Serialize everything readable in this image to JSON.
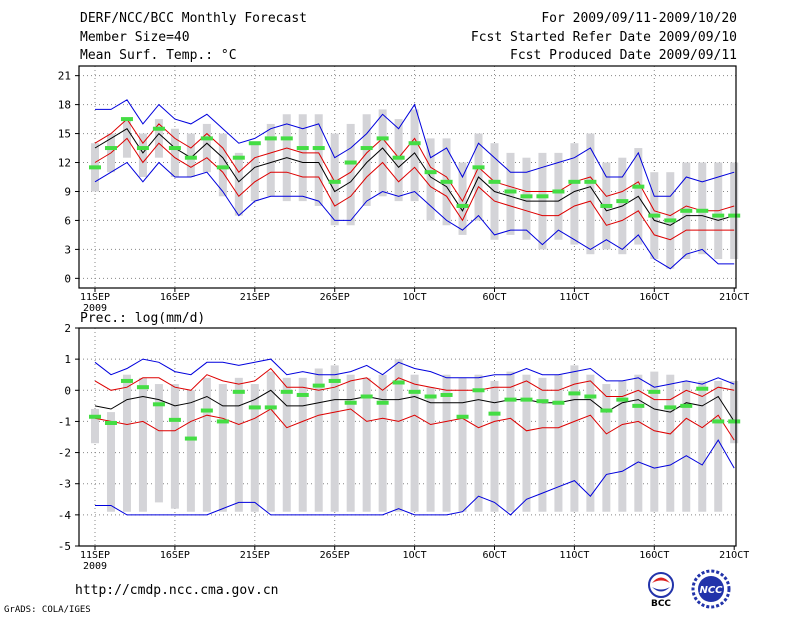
{
  "header": {
    "title": "DERF/NCC/BCC Monthly Forecast",
    "member_size": "Member Size=40",
    "variable": "Mean Surf. Temp.: °C",
    "period": "For 2009/09/11-2009/10/20",
    "started": "Fcst Started Refer Date 2009/09/10",
    "produced": "Fcst Produced Date 2009/09/11"
  },
  "footer": {
    "url": "http://cmdp.ncc.cma.gov.cn",
    "grads": "GrADS: COLA/IGES",
    "logo1_text": "BCC",
    "logo2_text": "NCC"
  },
  "colors": {
    "max_min": "#0000dd",
    "band": "#dd0000",
    "mean": "#000000",
    "obs": "#44dd44",
    "box": "#d4d4d8",
    "grid": "#888888"
  },
  "chart_data": [
    {
      "type": "line",
      "title": "Mean Surf. Temp.: °C",
      "x_tick_labels": [
        "11SEP",
        "16SEP",
        "21SEP",
        "26SEP",
        "1OCT",
        "6OCT",
        "11OCT",
        "16OCT",
        "21OCT"
      ],
      "x_year_label": "2009",
      "ylim": [
        -1,
        22
      ],
      "yticks": [
        0,
        3,
        6,
        9,
        12,
        15,
        18,
        21
      ],
      "days": 40,
      "series": [
        {
          "name": "max",
          "values": [
            17.5,
            17.5,
            18.5,
            16.0,
            18.0,
            16.5,
            16.0,
            17.0,
            15.5,
            14.0,
            14.5,
            15.5,
            16.0,
            15.5,
            16.0,
            12.5,
            13.5,
            15.0,
            17.0,
            15.5,
            18.0,
            12.5,
            13.5,
            10.5,
            14.0,
            12.5,
            11.0,
            11.0,
            11.5,
            12.0,
            12.5,
            13.5,
            10.5,
            10.5,
            13.0,
            8.5,
            8.5,
            10.5,
            10.0,
            10.5,
            11.0
          ]
        },
        {
          "name": "upper",
          "values": [
            14.0,
            15.0,
            16.5,
            14.0,
            16.0,
            14.5,
            13.5,
            15.0,
            13.5,
            11.0,
            12.5,
            13.0,
            13.5,
            13.0,
            13.0,
            10.0,
            11.0,
            13.0,
            14.5,
            12.5,
            14.5,
            11.5,
            10.5,
            8.0,
            11.5,
            10.0,
            9.5,
            9.0,
            9.0,
            9.0,
            10.0,
            10.5,
            8.5,
            9.0,
            10.0,
            7.0,
            6.5,
            7.5,
            7.0,
            7.0,
            7.5
          ]
        },
        {
          "name": "mean",
          "values": [
            13.5,
            14.5,
            15.5,
            13.0,
            15.0,
            13.5,
            12.5,
            14.0,
            12.5,
            10.0,
            11.5,
            12.0,
            12.5,
            12.0,
            12.0,
            9.0,
            10.0,
            12.0,
            13.5,
            11.5,
            13.0,
            10.5,
            9.5,
            7.0,
            10.5,
            9.0,
            8.5,
            8.0,
            8.0,
            8.0,
            9.0,
            9.5,
            7.0,
            7.5,
            8.5,
            6.0,
            5.5,
            6.5,
            6.5,
            6.0,
            6.5
          ]
        },
        {
          "name": "lower",
          "values": [
            12.0,
            13.0,
            14.5,
            12.0,
            14.0,
            12.5,
            11.5,
            12.5,
            11.0,
            8.5,
            10.0,
            11.0,
            11.0,
            10.5,
            10.5,
            7.5,
            8.5,
            10.5,
            12.0,
            10.0,
            11.5,
            9.5,
            8.5,
            6.0,
            9.5,
            8.0,
            7.5,
            7.0,
            6.5,
            6.5,
            7.5,
            8.0,
            5.5,
            6.0,
            7.0,
            4.5,
            4.0,
            5.0,
            5.0,
            5.0,
            5.0
          ]
        },
        {
          "name": "min",
          "values": [
            10.0,
            11.0,
            12.0,
            10.0,
            12.0,
            10.5,
            10.5,
            11.0,
            9.0,
            6.5,
            8.0,
            8.5,
            8.5,
            8.5,
            8.0,
            6.0,
            6.0,
            8.0,
            9.0,
            8.5,
            9.0,
            7.5,
            6.0,
            5.0,
            6.5,
            4.5,
            5.0,
            5.0,
            3.5,
            5.0,
            4.0,
            3.0,
            4.0,
            3.0,
            4.5,
            2.0,
            1.0,
            2.5,
            3.0,
            1.5,
            1.5
          ]
        },
        {
          "name": "obs",
          "values": [
            11.5,
            13.5,
            16.5,
            13.5,
            15.5,
            13.5,
            12.5,
            14.5,
            11.5,
            12.5,
            14.0,
            14.5,
            14.5,
            13.5,
            13.5,
            10.0,
            12.0,
            13.5,
            14.5,
            12.5,
            14.0,
            11.0,
            10.0,
            7.5,
            11.5,
            10.0,
            9.0,
            8.5,
            8.5,
            9.0,
            10.0,
            10.0,
            7.5,
            8.0,
            9.5,
            6.5,
            6.0,
            7.0,
            7.0,
            6.5,
            6.5
          ]
        },
        {
          "name": "spread_hi",
          "values": [
            14.0,
            15.0,
            16.5,
            15.0,
            16.5,
            15.5,
            15.0,
            16.0,
            15.0,
            13.0,
            14.0,
            16.0,
            17.0,
            17.0,
            17.0,
            15.0,
            16.0,
            17.0,
            17.5,
            16.5,
            17.5,
            14.5,
            14.5,
            12.0,
            15.0,
            14.0,
            13.0,
            12.5,
            13.0,
            13.0,
            14.0,
            15.0,
            12.0,
            12.5,
            13.5,
            11.0,
            11.0,
            12.0,
            12.0,
            12.0,
            12.0
          ]
        },
        {
          "name": "spread_lo",
          "values": [
            9.0,
            11.0,
            12.5,
            10.5,
            12.5,
            10.5,
            10.5,
            11.0,
            8.5,
            6.5,
            8.0,
            8.5,
            8.0,
            8.0,
            7.5,
            5.5,
            5.5,
            7.5,
            8.5,
            8.0,
            8.0,
            6.0,
            5.5,
            4.5,
            6.0,
            4.0,
            4.5,
            4.0,
            3.0,
            4.0,
            3.5,
            2.5,
            3.0,
            2.5,
            3.5,
            2.0,
            1.0,
            2.0,
            2.5,
            2.0,
            2.0
          ]
        }
      ]
    },
    {
      "type": "line",
      "title": "Prec.: log(mm/d)",
      "x_tick_labels": [
        "11SEP",
        "16SEP",
        "21SEP",
        "26SEP",
        "1OCT",
        "6OCT",
        "11OCT",
        "16OCT",
        "21OCT"
      ],
      "x_year_label": "2009",
      "ylim": [
        -5,
        2
      ],
      "yticks": [
        -5,
        -4,
        -3,
        -2,
        -1,
        0,
        1,
        2
      ],
      "days": 40,
      "series": [
        {
          "name": "max",
          "values": [
            0.9,
            0.5,
            0.7,
            1.0,
            0.9,
            0.6,
            0.5,
            0.9,
            0.9,
            0.8,
            0.9,
            1.0,
            0.5,
            0.6,
            0.5,
            0.5,
            0.6,
            0.8,
            0.5,
            0.9,
            0.7,
            0.6,
            0.4,
            0.4,
            0.4,
            0.5,
            0.5,
            0.7,
            0.5,
            0.5,
            0.6,
            0.7,
            0.3,
            0.3,
            0.4,
            0.1,
            0.2,
            0.3,
            0.2,
            0.4,
            0.2
          ]
        },
        {
          "name": "upper",
          "values": [
            0.3,
            0.0,
            0.1,
            0.4,
            0.4,
            0.1,
            0.0,
            0.5,
            0.3,
            0.2,
            0.3,
            0.7,
            0.1,
            0.1,
            0.0,
            0.1,
            0.3,
            0.4,
            0.0,
            0.4,
            0.2,
            0.1,
            0.0,
            0.0,
            0.0,
            0.1,
            0.1,
            0.3,
            0.0,
            0.0,
            0.2,
            0.3,
            -0.2,
            -0.2,
            0.0,
            -0.3,
            -0.3,
            0.0,
            -0.2,
            0.1,
            0.0
          ]
        },
        {
          "name": "mean",
          "values": [
            -0.5,
            -0.6,
            -0.3,
            -0.2,
            -0.3,
            -0.5,
            -0.4,
            -0.2,
            -0.5,
            -0.5,
            -0.3,
            0.0,
            -0.5,
            -0.5,
            -0.4,
            -0.3,
            -0.3,
            -0.2,
            -0.3,
            -0.3,
            -0.2,
            -0.4,
            -0.4,
            -0.4,
            -0.3,
            -0.4,
            -0.3,
            -0.3,
            -0.4,
            -0.4,
            -0.3,
            -0.3,
            -0.7,
            -0.4,
            -0.3,
            -0.6,
            -0.7,
            -0.4,
            -0.5,
            -0.2,
            -1.0
          ]
        },
        {
          "name": "lower",
          "values": [
            -0.9,
            -1.0,
            -1.1,
            -1.0,
            -1.3,
            -1.3,
            -1.0,
            -0.8,
            -0.9,
            -1.1,
            -0.9,
            -0.6,
            -1.2,
            -1.0,
            -0.8,
            -0.7,
            -0.6,
            -1.0,
            -0.9,
            -1.0,
            -0.8,
            -1.1,
            -1.0,
            -0.9,
            -1.2,
            -1.0,
            -0.9,
            -1.3,
            -1.2,
            -1.2,
            -1.0,
            -0.8,
            -1.4,
            -1.1,
            -1.0,
            -1.3,
            -1.4,
            -0.9,
            -1.2,
            -0.8,
            -1.6
          ]
        },
        {
          "name": "min",
          "values": [
            -3.7,
            -3.7,
            -4.0,
            -4.0,
            -4.0,
            -4.0,
            -4.0,
            -4.0,
            -3.8,
            -3.6,
            -3.6,
            -4.0,
            -4.0,
            -4.0,
            -4.0,
            -4.0,
            -4.0,
            -4.0,
            -4.0,
            -3.8,
            -4.0,
            -4.0,
            -4.0,
            -3.9,
            -3.4,
            -3.6,
            -4.0,
            -3.5,
            -3.3,
            -3.1,
            -2.9,
            -3.4,
            -2.7,
            -2.6,
            -2.3,
            -2.5,
            -2.4,
            -2.1,
            -2.4,
            -1.6,
            -2.5
          ]
        },
        {
          "name": "obs",
          "values": [
            -0.85,
            -1.05,
            0.3,
            0.1,
            -0.45,
            -0.95,
            -1.55,
            -0.65,
            -1.0,
            -0.05,
            -0.55,
            -0.55,
            -0.05,
            -0.15,
            0.15,
            0.3,
            -0.4,
            -0.2,
            -0.4,
            0.25,
            -0.05,
            -0.2,
            -0.15,
            -0.85,
            0.0,
            -0.75,
            -0.3,
            -0.3,
            -0.35,
            -0.4,
            -0.1,
            -0.2,
            -0.65,
            -0.3,
            -0.5,
            -0.05,
            -0.55,
            -0.5,
            0.05,
            -1.0,
            -1.0
          ]
        },
        {
          "name": "spread_hi",
          "values": [
            -0.6,
            -0.7,
            0.5,
            0.4,
            0.2,
            0.2,
            0.0,
            0.4,
            0.2,
            0.4,
            0.2,
            0.6,
            0.4,
            0.4,
            0.7,
            0.8,
            0.5,
            0.4,
            0.5,
            1.0,
            0.5,
            0.1,
            0.5,
            0.4,
            0.5,
            0.3,
            0.6,
            0.5,
            0.4,
            0.5,
            0.8,
            0.5,
            0.2,
            0.3,
            0.5,
            0.6,
            0.5,
            0.3,
            0.3,
            0.3,
            0.3
          ]
        },
        {
          "name": "spread_lo",
          "values": [
            -1.7,
            -3.9,
            -3.9,
            -3.9,
            -3.6,
            -3.8,
            -3.9,
            -3.9,
            -3.9,
            -3.9,
            -3.9,
            -3.9,
            -3.9,
            -3.9,
            -3.9,
            -3.9,
            -3.9,
            -3.9,
            -3.9,
            -3.9,
            -3.9,
            -3.9,
            -3.9,
            -3.9,
            -3.9,
            -3.9,
            -3.9,
            -3.9,
            -3.9,
            -3.9,
            -3.9,
            -3.9,
            -3.9,
            -3.9,
            -3.9,
            -3.9,
            -3.9,
            -3.9,
            -3.9,
            -3.9,
            -1.7
          ]
        }
      ]
    }
  ]
}
